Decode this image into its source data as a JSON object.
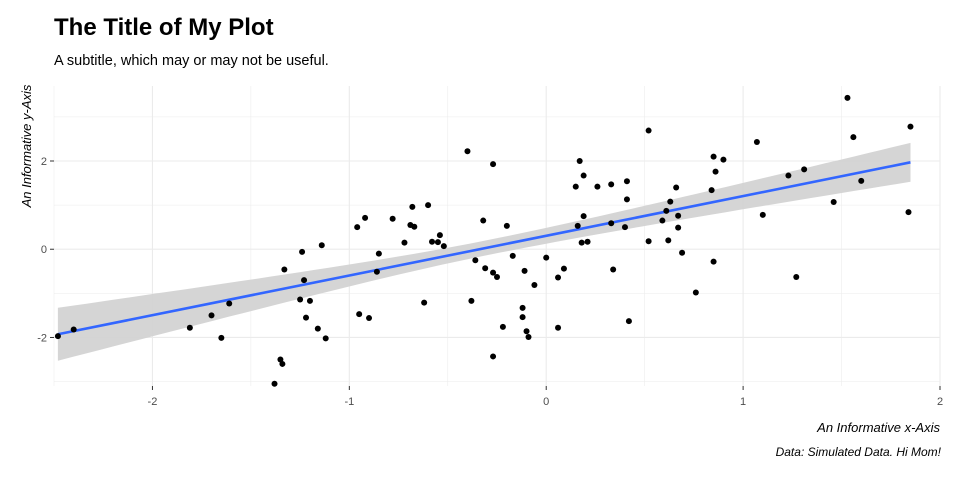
{
  "chart_data": {
    "type": "scatter",
    "title": "The Title of My Plot",
    "subtitle": "A subtitle, which may or may not be useful.",
    "xlabel": "An Informative x-Axis",
    "ylabel": "An Informative y-Axis",
    "caption": "Data: Simulated Data. Hi Mom!",
    "xlim": [
      -2.5,
      2.0
    ],
    "ylim": [
      -3.1,
      3.7
    ],
    "x_ticks": [
      -2,
      -1,
      0,
      1,
      2
    ],
    "x_tick_labels": [
      "-2",
      "-1",
      "0",
      "1",
      "2"
    ],
    "y_ticks": [
      -2,
      0,
      2
    ],
    "y_tick_labels": [
      "-2",
      "0",
      "2"
    ],
    "grid": true,
    "point_color": "#000000",
    "fit_line": {
      "method": "linear",
      "color": "#3366FF",
      "band_color": "#d3d3d3",
      "x_range": [
        -2.48,
        1.85
      ],
      "intercept": 0.305,
      "slope": 0.9,
      "se_band_halfwidth_at_ends": [
        0.6,
        0.44
      ]
    },
    "points": [
      {
        "x": -2.48,
        "y": -1.97
      },
      {
        "x": -2.4,
        "y": -1.82
      },
      {
        "x": -1.81,
        "y": -1.78
      },
      {
        "x": -1.7,
        "y": -1.5
      },
      {
        "x": -1.65,
        "y": -2.01
      },
      {
        "x": -1.61,
        "y": -1.23
      },
      {
        "x": -1.38,
        "y": -3.05
      },
      {
        "x": -1.35,
        "y": -2.5
      },
      {
        "x": -1.34,
        "y": -2.6
      },
      {
        "x": -1.33,
        "y": -0.46
      },
      {
        "x": -1.25,
        "y": -1.14
      },
      {
        "x": -1.24,
        "y": -0.06
      },
      {
        "x": -1.23,
        "y": -0.7
      },
      {
        "x": -1.22,
        "y": -1.55
      },
      {
        "x": -1.2,
        "y": -1.17
      },
      {
        "x": -1.16,
        "y": -1.8
      },
      {
        "x": -1.14,
        "y": 0.09
      },
      {
        "x": -1.12,
        "y": -2.02
      },
      {
        "x": -0.96,
        "y": 0.5
      },
      {
        "x": -0.95,
        "y": -1.47
      },
      {
        "x": -0.92,
        "y": 0.71
      },
      {
        "x": -0.9,
        "y": -1.56
      },
      {
        "x": -0.86,
        "y": -0.51
      },
      {
        "x": -0.85,
        "y": -0.1
      },
      {
        "x": -0.78,
        "y": 0.69
      },
      {
        "x": -0.72,
        "y": 0.15
      },
      {
        "x": -0.69,
        "y": 0.55
      },
      {
        "x": -0.68,
        "y": 0.96
      },
      {
        "x": -0.67,
        "y": 0.51
      },
      {
        "x": -0.62,
        "y": -1.21
      },
      {
        "x": -0.6,
        "y": 1.0
      },
      {
        "x": -0.58,
        "y": 0.17
      },
      {
        "x": -0.55,
        "y": 0.16
      },
      {
        "x": -0.54,
        "y": 0.32
      },
      {
        "x": -0.52,
        "y": 0.07
      },
      {
        "x": -0.4,
        "y": 2.22
      },
      {
        "x": -0.38,
        "y": -1.17
      },
      {
        "x": -0.36,
        "y": -0.25
      },
      {
        "x": -0.32,
        "y": 0.65
      },
      {
        "x": -0.31,
        "y": -0.43
      },
      {
        "x": -0.27,
        "y": 1.93
      },
      {
        "x": -0.27,
        "y": -2.43
      },
      {
        "x": -0.27,
        "y": -0.53
      },
      {
        "x": -0.25,
        "y": -0.63
      },
      {
        "x": -0.22,
        "y": -1.76
      },
      {
        "x": -0.2,
        "y": 0.53
      },
      {
        "x": -0.17,
        "y": -0.15
      },
      {
        "x": -0.12,
        "y": -1.54
      },
      {
        "x": -0.12,
        "y": -1.33
      },
      {
        "x": -0.11,
        "y": -0.49
      },
      {
        "x": -0.1,
        "y": -1.86
      },
      {
        "x": -0.09,
        "y": -1.99
      },
      {
        "x": -0.06,
        "y": -0.81
      },
      {
        "x": 0.0,
        "y": -0.19
      },
      {
        "x": 0.06,
        "y": -0.64
      },
      {
        "x": 0.06,
        "y": -1.78
      },
      {
        "x": 0.09,
        "y": -0.44
      },
      {
        "x": 0.15,
        "y": 1.42
      },
      {
        "x": 0.16,
        "y": 0.53
      },
      {
        "x": 0.17,
        "y": 2.0
      },
      {
        "x": 0.18,
        "y": 0.15
      },
      {
        "x": 0.19,
        "y": 1.67
      },
      {
        "x": 0.19,
        "y": 0.75
      },
      {
        "x": 0.21,
        "y": 0.17
      },
      {
        "x": 0.26,
        "y": 1.42
      },
      {
        "x": 0.33,
        "y": 0.59
      },
      {
        "x": 0.33,
        "y": 1.47
      },
      {
        "x": 0.34,
        "y": -0.46
      },
      {
        "x": 0.4,
        "y": 0.5
      },
      {
        "x": 0.41,
        "y": 1.13
      },
      {
        "x": 0.41,
        "y": 1.54
      },
      {
        "x": 0.42,
        "y": -1.63
      },
      {
        "x": 0.52,
        "y": 2.69
      },
      {
        "x": 0.52,
        "y": 0.18
      },
      {
        "x": 0.59,
        "y": 0.65
      },
      {
        "x": 0.61,
        "y": 0.87
      },
      {
        "x": 0.62,
        "y": 0.2
      },
      {
        "x": 0.63,
        "y": 1.08
      },
      {
        "x": 0.66,
        "y": 1.4
      },
      {
        "x": 0.67,
        "y": 0.76
      },
      {
        "x": 0.67,
        "y": 0.49
      },
      {
        "x": 0.69,
        "y": -0.08
      },
      {
        "x": 0.76,
        "y": -0.98
      },
      {
        "x": 0.84,
        "y": 1.34
      },
      {
        "x": 0.85,
        "y": 2.1
      },
      {
        "x": 0.85,
        "y": -0.28
      },
      {
        "x": 0.86,
        "y": 1.76
      },
      {
        "x": 0.9,
        "y": 2.03
      },
      {
        "x": 1.07,
        "y": 2.43
      },
      {
        "x": 1.1,
        "y": 0.78
      },
      {
        "x": 1.23,
        "y": 1.67
      },
      {
        "x": 1.27,
        "y": -0.63
      },
      {
        "x": 1.31,
        "y": 1.81
      },
      {
        "x": 1.46,
        "y": 1.07
      },
      {
        "x": 1.53,
        "y": 3.43
      },
      {
        "x": 1.56,
        "y": 2.54
      },
      {
        "x": 1.6,
        "y": 1.55
      },
      {
        "x": 1.84,
        "y": 0.84
      },
      {
        "x": 1.85,
        "y": 2.78
      }
    ]
  }
}
